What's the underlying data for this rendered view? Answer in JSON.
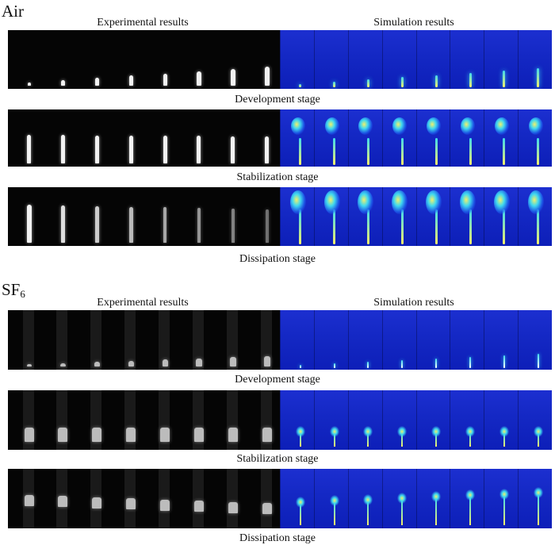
{
  "figure": {
    "sections": [
      {
        "id": "air",
        "title_main": "Air",
        "title_sub": "",
        "col_exp": "Experimental results",
        "col_sim": "Simulation results",
        "stages": [
          "Development stage",
          "Stabilization stage",
          "Dissipation stage"
        ]
      },
      {
        "id": "sf6",
        "title_main": "SF",
        "title_sub": "6",
        "col_exp": "Experimental results",
        "col_sim": "Simulation results",
        "stages": [
          "Development stage",
          "Stabilization stage",
          "Dissipation stage"
        ]
      }
    ],
    "colors": {
      "exp_bg": "#050505",
      "exp_plume": "#f2f2f2",
      "sim_bg": "#1428c4",
      "sim_cyan": "#3fd8f0",
      "sim_yellow": "#f3f06a"
    }
  }
}
